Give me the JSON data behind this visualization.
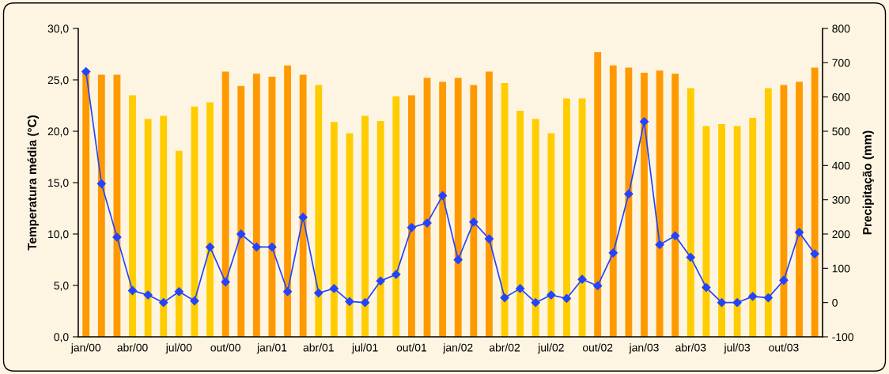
{
  "chart_data": {
    "type": "bar",
    "ylabel": "Temperatura média (°C)",
    "y2label": "Precipitação (mm)",
    "categories": [
      "jan/00",
      null,
      null,
      "abr/00",
      null,
      null,
      "jul/00",
      null,
      null,
      "out/00",
      null,
      null,
      "jan/01",
      null,
      null,
      "abr/01",
      null,
      null,
      "jul/01",
      null,
      null,
      "out/01",
      null,
      null,
      "jan/02",
      null,
      null,
      "abr/02",
      null,
      null,
      "jul/02",
      null,
      null,
      "out/02",
      null,
      null,
      "jan/03",
      null,
      null,
      "abr/03",
      null,
      null,
      "jul/03",
      null,
      null,
      "out/03",
      null,
      null
    ],
    "series": [
      {
        "colors": [
          "#ff9900",
          "#ff9900",
          "#ff9900",
          "#ffcc00",
          "#ffcc00",
          "#ffcc00",
          "#ffcc00",
          "#ffcc00",
          "#ffcc00",
          "#ff9900",
          "#ff9900",
          "#ff9900",
          "#ff9900",
          "#ff9900",
          "#ff9900",
          "#ffcc00",
          "#ffcc00",
          "#ffcc00",
          "#ffcc00",
          "#ffcc00",
          "#ffcc00",
          "#ff9900",
          "#ff9900",
          "#ff9900",
          "#ff9900",
          "#ff9900",
          "#ff9900",
          "#ffcc00",
          "#ffcc00",
          "#ffcc00",
          "#ffcc00",
          "#ffcc00",
          "#ffcc00",
          "#ff9900",
          "#ff9900",
          "#ff9900",
          "#ff9900",
          "#ff9900",
          "#ff9900",
          "#ffcc00",
          "#ffcc00",
          "#ffcc00",
          "#ffcc00",
          "#ffcc00",
          "#ffcc00",
          "#ff9900",
          "#ff9900",
          "#ff9900"
        ],
        "values": [
          25.8,
          25.5,
          25.5,
          23.5,
          21.2,
          21.5,
          18.1,
          22.4,
          22.8,
          25.8,
          24.4,
          25.6,
          25.3,
          26.4,
          25.5,
          24.5,
          20.9,
          19.8,
          21.5,
          21.0,
          23.4,
          23.5,
          25.2,
          24.8,
          25.2,
          24.5,
          25.8,
          24.7,
          22.0,
          21.2,
          19.8,
          23.2,
          23.2,
          27.7,
          26.4,
          26.2,
          25.7,
          25.9,
          25.6,
          24.2,
          20.5,
          20.7,
          20.5,
          21.3,
          24.2,
          24.5,
          24.8,
          26.2
        ]
      },
      {
        "type": "line",
        "axis": "y2",
        "color": "#2244ff",
        "marker": "diamond",
        "line_style": "solid",
        "values": [
          674,
          347,
          191,
          35,
          22,
          0,
          32,
          5,
          162,
          60,
          200,
          162,
          162,
          32,
          249,
          28,
          41,
          3,
          0,
          63,
          82,
          219,
          232,
          312,
          125,
          235,
          186,
          14,
          41,
          0,
          22,
          12,
          68,
          49,
          145,
          317,
          528,
          169,
          195,
          132,
          44,
          0,
          0,
          18,
          14,
          65,
          205,
          142
        ]
      }
    ],
    "ylim": [
      0,
      30
    ],
    "yticks": [
      {
        "value": 0,
        "label": "0,0"
      },
      {
        "value": 5,
        "label": "5,0"
      },
      {
        "value": 10,
        "label": "10,0"
      },
      {
        "value": 15,
        "label": "15,0"
      },
      {
        "value": 20,
        "label": "20,0"
      },
      {
        "value": 25,
        "label": "25,0"
      },
      {
        "value": 30,
        "label": "30,0"
      }
    ],
    "y2lim": [
      -100,
      800
    ],
    "y2ticks": [
      -100,
      0,
      100,
      200,
      300,
      400,
      500,
      600,
      700,
      800
    ]
  }
}
